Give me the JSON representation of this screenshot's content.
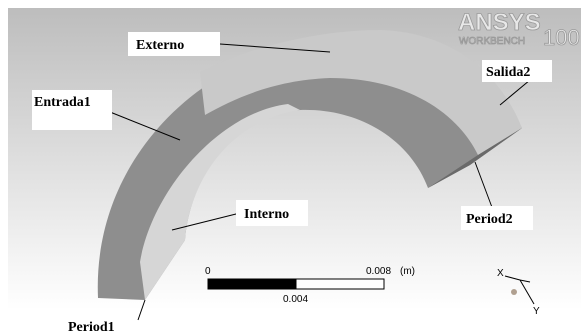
{
  "logo": {
    "brand": "ANSYS",
    "product": "WORKBENCH",
    "version": "100"
  },
  "labels": {
    "externo": "Externo",
    "entrada1": "Entrada1",
    "salida2": "Salida2",
    "interno": "Interno",
    "period2": "Period2",
    "period1": "Period1"
  },
  "scale_bar": {
    "start": "0",
    "end": "0.008",
    "unit": "(m)",
    "middle": "0.004"
  },
  "triad": {
    "x": "X",
    "y": "Y"
  }
}
